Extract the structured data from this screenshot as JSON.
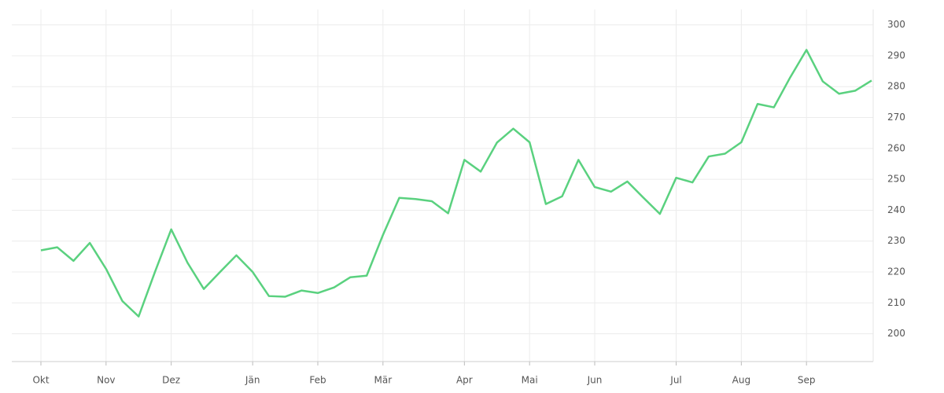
{
  "chart_data": {
    "type": "line",
    "categories": [
      "Okt",
      null,
      null,
      null,
      "Nov",
      null,
      null,
      null,
      "Dez",
      null,
      null,
      null,
      null,
      "Jän",
      null,
      null,
      null,
      "Feb",
      null,
      null,
      null,
      "Mär",
      null,
      null,
      null,
      null,
      "Apr",
      null,
      null,
      null,
      "Mai",
      null,
      null,
      null,
      "Jun",
      null,
      null,
      null,
      null,
      "Jul",
      null,
      null,
      null,
      "Aug",
      null,
      null,
      null,
      "Sep",
      null,
      null,
      null,
      null
    ],
    "series": [
      {
        "color": "#5ad17f",
        "values": [
          227,
          228,
          223.6,
          229.4,
          221,
          210.6,
          205.6,
          220,
          233.8,
          223,
          214.5,
          220,
          225.4,
          220,
          212.2,
          212,
          214,
          213.2,
          215,
          218.3,
          218.8,
          232,
          244,
          243.6,
          242.9,
          239,
          256.3,
          252.5,
          261.9,
          266.4,
          262,
          242,
          244.5,
          256.3,
          247.5,
          246,
          249.3,
          244,
          238.8,
          250.5,
          249,
          257.4,
          258.3,
          262,
          274.4,
          273.3,
          283,
          291.9,
          281.7,
          277.7,
          278.7,
          282
        ]
      }
    ],
    "ylim": [
      191,
      305
    ],
    "yticks": [
      200,
      210,
      220,
      230,
      240,
      250,
      260,
      270,
      280,
      290,
      300
    ],
    "grid": true
  }
}
